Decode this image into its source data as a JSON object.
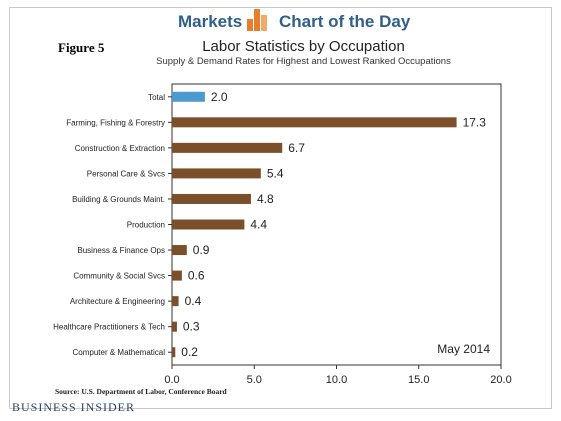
{
  "header": {
    "markets_label": "Markets",
    "chart_of_the_day_label": "Chart of the Day"
  },
  "figure_label": "Figure 5",
  "source": "Source:  U.S. Department of Labor, Conference Board",
  "brand": "Business Insider",
  "colors": {
    "bar": "#7b4f2a",
    "highlight": "#4d9ad0",
    "logo_orange": "#e57f2c",
    "header_blue": "#2f5f8a"
  },
  "chart_data": {
    "type": "bar",
    "orientation": "horizontal",
    "title": "Labor Statistics by Occupation",
    "subtitle": "Supply & Demand Rates for Highest and Lowest Ranked Occupations",
    "categories": [
      "Total",
      "Farming, Fishing & Forestry",
      "Construction & Extraction",
      "Personal Care & Svcs",
      "Building & Grounds Maint.",
      "Production",
      "Business & Finance Ops",
      "Community & Social Svcs",
      "Architecture & Engineering",
      "Healthcare Practitioners & Tech",
      "Computer & Mathematical"
    ],
    "values": [
      2.0,
      17.3,
      6.7,
      5.4,
      4.8,
      4.4,
      0.9,
      0.6,
      0.4,
      0.3,
      0.2
    ],
    "value_labels": [
      "2.0",
      "17.3",
      "6.7",
      "5.4",
      "4.8",
      "4.4",
      "0.9",
      "0.6",
      "0.4",
      "0.3",
      "0.2"
    ],
    "highlighted_category": "Total",
    "xlim": [
      0,
      20
    ],
    "xticks": [
      "0.0",
      "5.0",
      "10.0",
      "15.0",
      "20.0"
    ],
    "xtick_values": [
      0,
      5,
      10,
      15,
      20
    ],
    "annotation": "May 2014",
    "grid": false
  }
}
